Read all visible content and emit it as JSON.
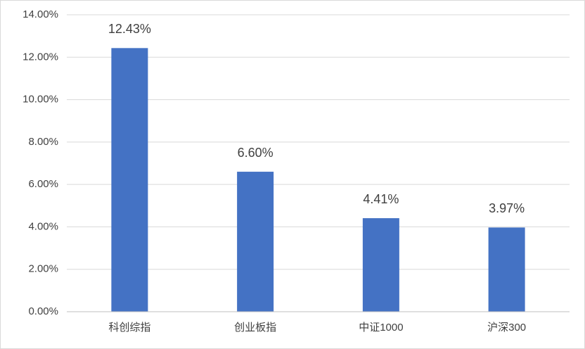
{
  "chart_data": {
    "type": "bar",
    "categories": [
      "科创综指",
      "创业板指",
      "中证1000",
      "沪深300"
    ],
    "values": [
      12.43,
      6.6,
      4.41,
      3.97
    ],
    "value_labels": [
      "12.43%",
      "6.60%",
      "4.41%",
      "3.97%"
    ],
    "color": "#4472c4",
    "ylim": [
      0,
      14
    ],
    "yticks": [
      {
        "value": 0,
        "label": "0.00%"
      },
      {
        "value": 2,
        "label": "2.00%"
      },
      {
        "value": 4,
        "label": "4.00%"
      },
      {
        "value": 6,
        "label": "6.00%"
      },
      {
        "value": 8,
        "label": "8.00%"
      },
      {
        "value": 10,
        "label": "10.00%"
      },
      {
        "value": 12,
        "label": "12.00%"
      },
      {
        "value": 14,
        "label": "14.00%"
      }
    ],
    "grid": true
  }
}
